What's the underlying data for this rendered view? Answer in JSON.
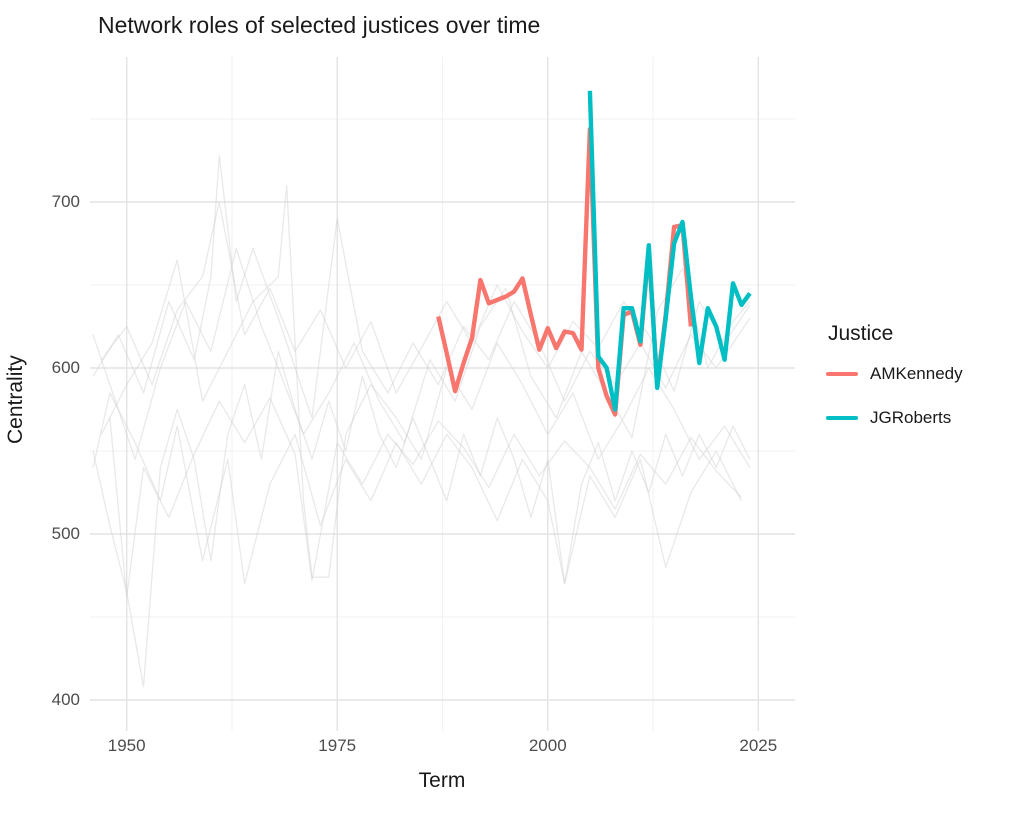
{
  "title": "Network roles of selected justices over time",
  "axes": {
    "x_label": "Term",
    "y_label": "Centrality",
    "x_ticks": [
      1950,
      1975,
      2000,
      2025
    ],
    "x_minor": [
      1962.5,
      1987.5,
      2012.5
    ],
    "y_ticks": [
      400,
      500,
      600,
      700
    ],
    "y_minor": [
      450,
      550,
      650,
      750
    ]
  },
  "legend": {
    "title": "Justice",
    "entries": [
      {
        "label": "AMKennedy",
        "color": "#F8766D"
      },
      {
        "label": "JGRoberts",
        "color": "#00BFC4"
      }
    ]
  },
  "colors": {
    "background": "#FFFFFF",
    "grid_major": "#E3E3E3",
    "grid_minor": "#F2F2F2",
    "other_justices": "#CFCFCF",
    "tick_text": "#4D4D4D",
    "title_text": "#1A1A1A"
  },
  "chart_data": {
    "type": "line",
    "title": "Network roles of selected justices over time",
    "xlabel": "Term",
    "ylabel": "Centrality",
    "x_range": [
      1945.5,
      2029.5
    ],
    "y_range": [
      381,
      787
    ],
    "grid": true,
    "legend_position": "right",
    "series": [
      {
        "name": "AMKennedy",
        "color": "#F8766D",
        "start_year": 1987,
        "values": [
          631,
          609,
          586,
          603,
          618,
          653,
          639,
          641,
          643,
          646,
          654,
          632,
          611,
          624,
          612,
          622,
          621,
          611,
          744,
          600,
          583,
          572,
          632,
          634,
          614,
          672,
          590,
          632,
          685,
          686,
          625
        ]
      },
      {
        "name": "JGRoberts",
        "color": "#00BFC4",
        "start_year": 2005,
        "values": [
          767,
          607,
          600,
          575,
          636,
          636,
          616,
          674,
          588,
          630,
          675,
          688,
          643,
          603,
          636,
          625,
          605,
          651,
          638,
          645
        ]
      }
    ],
    "background_series": [
      {
        "x": [
          1946,
          1948,
          1950,
          1952,
          1954,
          1956,
          1958,
          1960,
          1962,
          1964,
          1966,
          1968,
          1970,
          1972,
          1974,
          1976,
          1978,
          1980,
          1982,
          1984,
          1986,
          1988,
          1990,
          1992,
          1994,
          1996,
          1998,
          2000,
          2002,
          2004,
          2006,
          2008,
          2010,
          2012,
          2014,
          2016,
          2018,
          2020,
          2022,
          2024
        ],
        "y": [
          550,
          505,
          465,
          408,
          540,
          575,
          545,
          484,
          560,
          590,
          545,
          610,
          575,
          545,
          580,
          550,
          595,
          560,
          540,
          570,
          545,
          520,
          560,
          535,
          570,
          545,
          510,
          545,
          470,
          530,
          555,
          520,
          550,
          525,
          560,
          535,
          560,
          540,
          565,
          545
        ]
      },
      {
        "x": [
          1946,
          1949,
          1952,
          1955,
          1958,
          1960,
          1961,
          1963,
          1965,
          1968,
          1970,
          1972,
          1975,
          1978,
          1981,
          1984,
          1987,
          1990,
          1993,
          1996,
          1999,
          2002,
          2005,
          2008,
          2011,
          2014,
          2017,
          2020,
          2024
        ],
        "y": [
          595,
          620,
          585,
          640,
          605,
          655,
          728,
          640,
          672,
          630,
          600,
          570,
          690,
          610,
          585,
          615,
          590,
          625,
          605,
          640,
          615,
          580,
          610,
          590,
          615,
          588,
          620,
          600,
          630
        ]
      },
      {
        "x": [
          1947,
          1950,
          1953,
          1956,
          1959,
          1962,
          1965,
          1968,
          1969,
          1971,
          1972,
          1974,
          1976,
          1979,
          1982,
          1985,
          1988,
          1991,
          1994,
          1997,
          2000,
          2003,
          2006,
          2009,
          2012,
          2015,
          2018,
          2021,
          2024
        ],
        "y": [
          560,
          590,
          615,
          665,
          580,
          610,
          640,
          655,
          710,
          520,
          474,
          474,
          560,
          590,
          570,
          545,
          600,
          575,
          615,
          590,
          560,
          585,
          545,
          570,
          600,
          575,
          545,
          565,
          540
        ]
      },
      {
        "x": [
          1946,
          1949,
          1951,
          1954,
          1957,
          1960,
          1963,
          1966,
          1968,
          1971,
          1974,
          1977,
          1980,
          1983,
          1986,
          1989,
          1992,
          1995,
          1998,
          2001,
          2004,
          2007,
          2010,
          2013,
          2016,
          2019,
          2022,
          2024
        ],
        "y": [
          620,
          575,
          545,
          600,
          640,
          610,
          672,
          625,
          600,
          560,
          585,
          615,
          580,
          555,
          605,
          580,
          625,
          648,
          595,
          570,
          610,
          585,
          558,
          634,
          660,
          600,
          628,
          640
        ]
      },
      {
        "x": [
          1946,
          1948,
          1951,
          1954,
          1956,
          1959,
          1962,
          1964,
          1967,
          1970,
          1973,
          1976,
          1979,
          1982,
          1985,
          1988,
          1991,
          1994,
          1997,
          2000,
          2002,
          2005,
          2008,
          2011,
          2014,
          2017,
          2020,
          2023
        ],
        "y": [
          540,
          585,
          555,
          520,
          565,
          484,
          545,
          470,
          530,
          560,
          505,
          545,
          520,
          555,
          530,
          560,
          540,
          508,
          545,
          520,
          470,
          535,
          510,
          545,
          480,
          525,
          550,
          520
        ]
      },
      {
        "x": [
          1947,
          1950,
          1953,
          1956,
          1959,
          1961,
          1964,
          1967,
          1970,
          1973,
          1976,
          1979,
          1982,
          1985,
          1988,
          1991,
          1994,
          1997,
          2000,
          2003,
          2006,
          2009,
          2012,
          2015,
          2018,
          2021,
          2024
        ],
        "y": [
          605,
          625,
          590,
          635,
          655,
          700,
          620,
          648,
          610,
          635,
          600,
          628,
          585,
          612,
          640,
          615,
          650,
          622,
          600,
          628,
          612,
          640,
          620,
          586,
          640,
          615,
          638
        ]
      },
      {
        "x": [
          1948,
          1950,
          1952,
          1955,
          1958,
          1961,
          1964,
          1967,
          1970,
          1972,
          1975,
          1978,
          1981,
          1984,
          1987,
          1990,
          1993,
          1996,
          1999,
          2002,
          2005,
          2008,
          2011,
          2014,
          2017,
          2020,
          2023
        ],
        "y": [
          570,
          462,
          540,
          510,
          548,
          580,
          555,
          582,
          548,
          472,
          555,
          530,
          560,
          542,
          568,
          552,
          528,
          560,
          535,
          556,
          540,
          515,
          548,
          530,
          558,
          538,
          522
        ]
      }
    ]
  }
}
